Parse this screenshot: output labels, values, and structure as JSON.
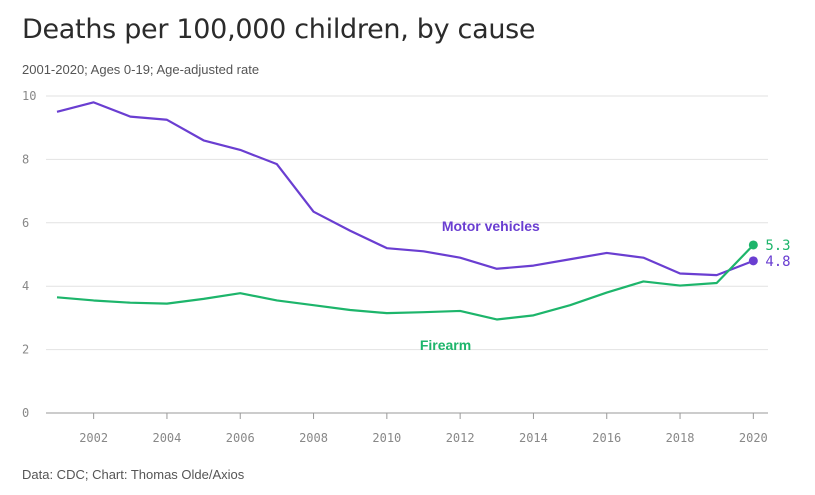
{
  "chart_data": {
    "type": "line",
    "title": "Deaths per 100,000 children, by cause",
    "subtitle": "2001-2020; Ages 0-19; Age-adjusted rate",
    "source": "Data: CDC; Chart: Thomas Olde/Axios",
    "x": [
      2001,
      2002,
      2003,
      2004,
      2005,
      2006,
      2007,
      2008,
      2009,
      2010,
      2011,
      2012,
      2013,
      2014,
      2015,
      2016,
      2017,
      2018,
      2019,
      2020
    ],
    "xlim": [
      2000.7,
      2020.4
    ],
    "ylim": [
      0,
      10
    ],
    "xticks": [
      2002,
      2004,
      2006,
      2008,
      2010,
      2012,
      2014,
      2016,
      2018,
      2020
    ],
    "yticks": [
      0,
      2,
      4,
      6,
      8,
      10
    ],
    "grid": true,
    "series": [
      {
        "name": "Motor vehicles",
        "color": "#6a3ed1",
        "values": [
          9.5,
          9.8,
          9.35,
          9.25,
          8.6,
          8.3,
          7.85,
          6.35,
          5.75,
          5.2,
          5.1,
          4.9,
          4.55,
          4.65,
          4.85,
          5.05,
          4.9,
          4.4,
          4.35,
          4.8
        ],
        "end_label": "4.8",
        "label_at": [
          2011.5,
          5.9
        ]
      },
      {
        "name": "Firearm",
        "color": "#1db56b",
        "values": [
          3.65,
          3.55,
          3.48,
          3.45,
          3.6,
          3.78,
          3.55,
          3.4,
          3.25,
          3.15,
          3.18,
          3.22,
          2.95,
          3.08,
          3.4,
          3.8,
          4.15,
          4.02,
          4.1,
          5.3
        ],
        "end_label": "5.3",
        "label_at": [
          2010.9,
          2.15
        ]
      }
    ]
  }
}
